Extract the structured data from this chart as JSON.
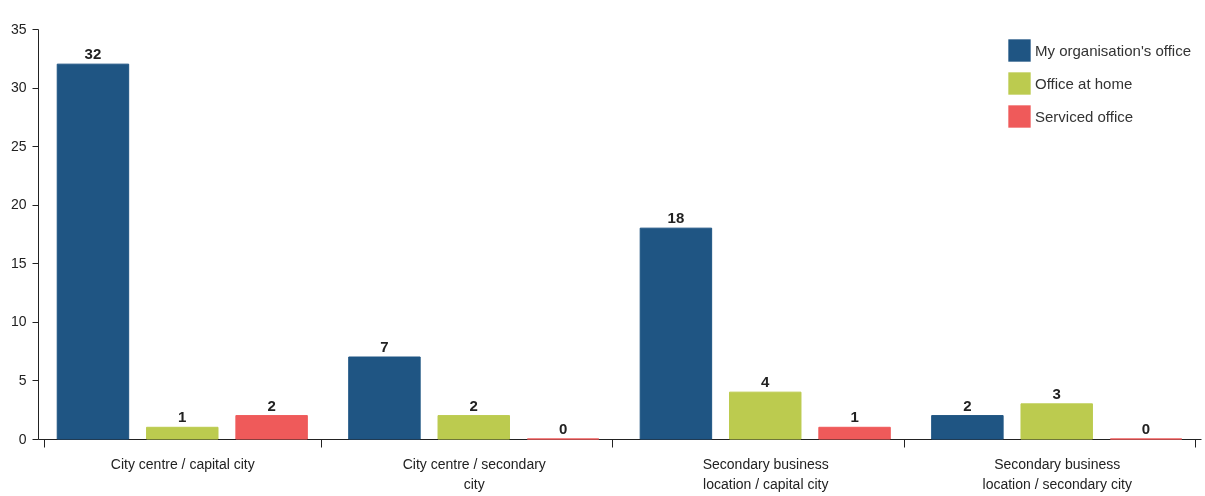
{
  "chart_data": {
    "type": "bar",
    "categories": [
      "City centre / capital city",
      "City centre / secondary city",
      "Secondary business location / capital city",
      "Secondary business location / secondary city"
    ],
    "series": [
      {
        "name": "My organisation's office",
        "color": "#1f5583",
        "values": [
          32,
          7,
          18,
          2
        ]
      },
      {
        "name": "Office at home",
        "color": "#bccb4f",
        "values": [
          1,
          2,
          4,
          3
        ]
      },
      {
        "name": "Serviced office",
        "color": "#ef5a5a",
        "values": [
          2,
          0,
          1,
          0
        ]
      }
    ],
    "ylim": [
      0,
      35
    ],
    "yticks": [
      0,
      5,
      10,
      15,
      20,
      25,
      30,
      35
    ],
    "grid": false,
    "legend": "top right",
    "data_labels": true
  }
}
